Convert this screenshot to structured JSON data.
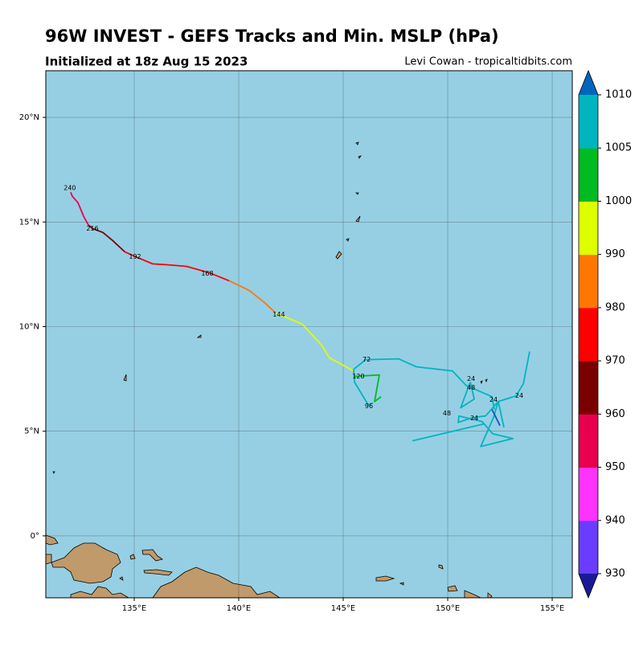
{
  "header": {
    "title": "96W INVEST - GEFS Tracks and Min. MSLP (hPa)",
    "subtitle": "Initialized at 18z Aug 15 2023",
    "credit": "Levi Cowan - tropicaltidbits.com"
  },
  "map": {
    "lonlim": [
      130.77,
      155.96
    ],
    "latlim": [
      -2.96,
      22.23
    ],
    "lon_ticks": [
      {
        "value": 135,
        "label": "135°E"
      },
      {
        "value": 140,
        "label": "140°E"
      },
      {
        "value": 145,
        "label": "145°E"
      },
      {
        "value": 150,
        "label": "150°E"
      },
      {
        "value": 155,
        "label": "155°E"
      }
    ],
    "lat_ticks": [
      {
        "value": 0,
        "label": "0°"
      },
      {
        "value": 5,
        "label": "5°N"
      },
      {
        "value": 10,
        "label": "10°N"
      },
      {
        "value": 15,
        "label": "15°N"
      },
      {
        "value": 20,
        "label": "20°N"
      }
    ],
    "grid": true,
    "tracks": [
      {
        "color": "#ddff00",
        "points": [
          [
            145.5,
            7.88
          ],
          [
            144.35,
            8.5
          ],
          [
            143.96,
            9.12
          ],
          [
            143.04,
            10.12
          ],
          [
            142.04,
            10.54
          ],
          [
            141.77,
            10.65
          ]
        ]
      },
      {
        "color": "#ff7700",
        "points": [
          [
            141.77,
            10.65
          ],
          [
            141.27,
            11.12
          ],
          [
            140.5,
            11.73
          ],
          [
            139.54,
            12.19
          ]
        ]
      },
      {
        "color": "#ff0000",
        "points": [
          [
            139.54,
            12.19
          ],
          [
            138.58,
            12.58
          ],
          [
            137.5,
            12.88
          ],
          [
            136.5,
            12.96
          ],
          [
            135.88,
            13.0
          ],
          [
            135.04,
            13.35
          ],
          [
            134.54,
            13.58
          ]
        ]
      },
      {
        "color": "#7a0000",
        "points": [
          [
            134.54,
            13.58
          ],
          [
            133.96,
            14.12
          ],
          [
            133.5,
            14.5
          ],
          [
            133.0,
            14.69
          ],
          [
            132.81,
            14.85
          ]
        ]
      },
      {
        "color": "#e8004f",
        "points": [
          [
            132.81,
            14.85
          ],
          [
            132.58,
            15.27
          ],
          [
            132.31,
            15.92
          ],
          [
            132.04,
            16.23
          ],
          [
            131.96,
            16.42
          ]
        ]
      },
      {
        "color": "#00b5bf",
        "points": [
          [
            145.5,
            7.96
          ],
          [
            145.54,
            7.35
          ],
          [
            146.19,
            6.27
          ],
          [
            146.42,
            6.35
          ]
        ]
      },
      {
        "color": "#00bb22",
        "points": [
          [
            145.5,
            7.62
          ],
          [
            146.73,
            7.69
          ],
          [
            146.5,
            6.42
          ],
          [
            146.81,
            6.65
          ]
        ]
      },
      {
        "color": "#00b5bf",
        "points": [
          [
            145.5,
            7.96
          ],
          [
            146.08,
            8.42
          ],
          [
            147.65,
            8.46
          ],
          [
            148.5,
            8.08
          ],
          [
            150.23,
            7.88
          ],
          [
            150.88,
            7.19
          ],
          [
            152.12,
            6.65
          ],
          [
            152.23,
            6.04
          ]
        ]
      },
      {
        "color": "#00b5bf",
        "points": [
          [
            153.92,
            8.81
          ],
          [
            153.62,
            7.27
          ],
          [
            153.27,
            6.69
          ],
          [
            152.42,
            6.42
          ],
          [
            151.81,
            5.73
          ],
          [
            151.19,
            5.65
          ],
          [
            150.5,
            5.42
          ],
          [
            150.54,
            5.73
          ],
          [
            151.65,
            5.46
          ],
          [
            152.15,
            4.88
          ],
          [
            153.12,
            4.65
          ],
          [
            151.58,
            4.27
          ],
          [
            152.19,
            5.65
          ],
          [
            152.42,
            6.42
          ],
          [
            152.69,
            5.19
          ]
        ]
      },
      {
        "color": "#00b5bf",
        "points": [
          [
            148.31,
            4.54
          ],
          [
            151.73,
            5.35
          ]
        ]
      },
      {
        "color": "#00b5bf",
        "points": [
          [
            151.08,
            7.35
          ],
          [
            150.62,
            6.12
          ],
          [
            151.27,
            6.54
          ],
          [
            151.08,
            7.35
          ]
        ]
      },
      {
        "color": "#1a4fcc",
        "points": [
          [
            152.12,
            6.04
          ],
          [
            152.5,
            5.27
          ]
        ]
      }
    ],
    "hour_labels": [
      {
        "label": "240",
        "lon": 131.92,
        "lat": 16.62
      },
      {
        "label": "216",
        "lon": 133.0,
        "lat": 14.69
      },
      {
        "label": "192",
        "lon": 135.04,
        "lat": 13.35
      },
      {
        "label": "168",
        "lon": 138.5,
        "lat": 12.54
      },
      {
        "label": "144",
        "lon": 141.92,
        "lat": 10.58
      },
      {
        "label": "120",
        "lon": 145.73,
        "lat": 7.62
      },
      {
        "label": "96",
        "lon": 146.23,
        "lat": 6.19
      },
      {
        "label": "72",
        "lon": 146.12,
        "lat": 8.42
      },
      {
        "label": "48",
        "lon": 151.12,
        "lat": 7.08
      },
      {
        "label": "24",
        "lon": 151.12,
        "lat": 7.5
      },
      {
        "label": "24",
        "lon": 152.19,
        "lat": 6.5
      },
      {
        "label": "24",
        "lon": 153.42,
        "lat": 6.69
      },
      {
        "label": "48",
        "lon": 149.96,
        "lat": 5.85
      },
      {
        "label": "24",
        "lon": 151.27,
        "lat": 5.62
      }
    ]
  },
  "colorbar": {
    "levels": [
      930,
      940,
      950,
      960,
      970,
      980,
      990,
      1000,
      1005,
      1010
    ],
    "colors": [
      "#6a3cff",
      "#ff33ff",
      "#e8004f",
      "#7a0000",
      "#ff0000",
      "#ff7700",
      "#ddff00",
      "#00bb22",
      "#00b5bf"
    ],
    "under_color": "#1a1a99",
    "over_color": "#0066bb"
  }
}
